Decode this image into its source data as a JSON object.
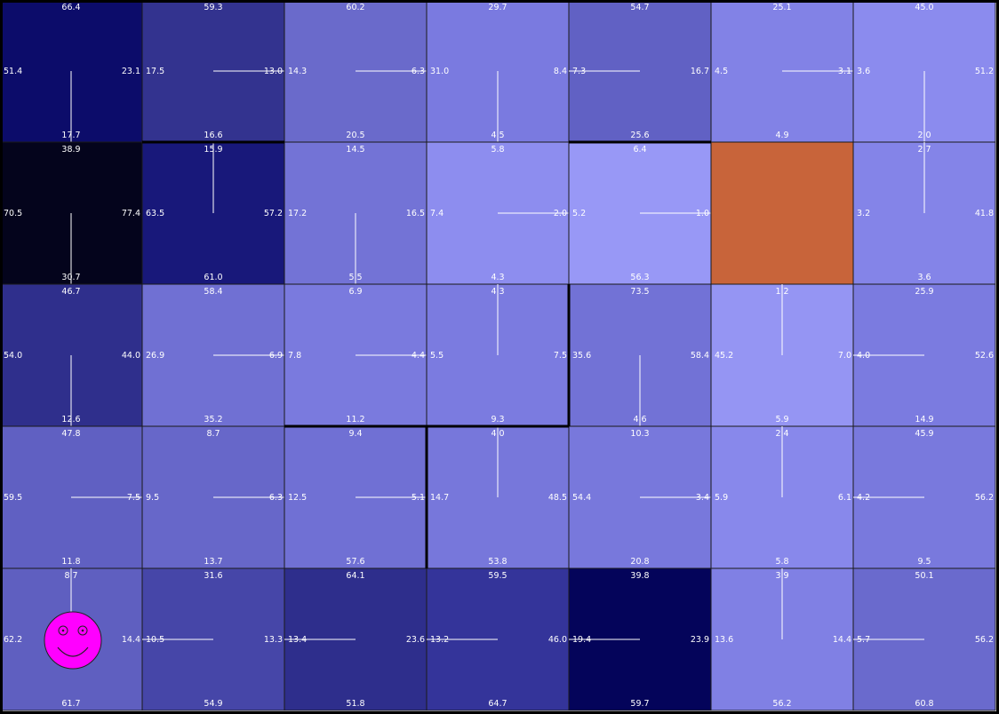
{
  "grid": {
    "cols": 7,
    "rows": 5,
    "goal_color": "#c8643a",
    "cells": [
      {
        "row": 0,
        "col": 0,
        "color": "#0c0c6a",
        "q": {
          "up": "66.4",
          "left": "51.4",
          "right": "23.1",
          "down": "17.7"
        },
        "best": "down"
      },
      {
        "row": 0,
        "col": 1,
        "color": "#33338f",
        "q": {
          "up": "59.3",
          "left": "17.5",
          "right": "13.0",
          "down": "16.6"
        },
        "best": "right"
      },
      {
        "row": 0,
        "col": 2,
        "color": "#6a6acb",
        "q": {
          "up": "60.2",
          "left": "14.3",
          "right": "6.3",
          "down": "20.5"
        },
        "best": "right"
      },
      {
        "row": 0,
        "col": 3,
        "color": "#7a7ae0",
        "q": {
          "up": "29.7",
          "left": "31.0",
          "right": "8.4",
          "down": "4.5"
        },
        "best": "down"
      },
      {
        "row": 0,
        "col": 4,
        "color": "#6161c4",
        "q": {
          "up": "54.7",
          "left": "7.3",
          "right": "16.7",
          "down": "25.6"
        },
        "best": "left"
      },
      {
        "row": 0,
        "col": 5,
        "color": "#8282e6",
        "q": {
          "up": "25.1",
          "left": "4.5",
          "right": "3.1",
          "down": "4.9"
        },
        "best": "right"
      },
      {
        "row": 0,
        "col": 6,
        "color": "#8b8bee",
        "q": {
          "up": "45.0",
          "left": "3.6",
          "right": "51.2",
          "down": "2.0"
        },
        "best": "down"
      },
      {
        "row": 1,
        "col": 0,
        "color": "#04041c",
        "q": {
          "up": "38.9",
          "left": "70.5",
          "right": "77.4",
          "down": "30.7"
        },
        "best": "down"
      },
      {
        "row": 1,
        "col": 1,
        "color": "#18187a",
        "q": {
          "up": "15.9",
          "left": "63.5",
          "right": "57.2",
          "down": "61.0"
        },
        "best": "up"
      },
      {
        "row": 1,
        "col": 2,
        "color": "#7373d6",
        "q": {
          "up": "14.5",
          "left": "17.2",
          "right": "16.5",
          "down": "5.5"
        },
        "best": "down"
      },
      {
        "row": 1,
        "col": 3,
        "color": "#8d8def",
        "q": {
          "up": "5.8",
          "left": "7.4",
          "right": "2.0",
          "down": "4.3"
        },
        "best": "right"
      },
      {
        "row": 1,
        "col": 4,
        "color": "#9898f6",
        "q": {
          "up": "6.4",
          "left": "5.2",
          "right": "1.0",
          "down": "56.3"
        },
        "best": "right"
      },
      {
        "row": 1,
        "col": 5,
        "color": "#c8643a",
        "goal": true
      },
      {
        "row": 1,
        "col": 6,
        "color": "#8484e8",
        "q": {
          "up": "2.7",
          "left": "3.2",
          "right": "41.8",
          "down": "3.6"
        },
        "best": "up"
      },
      {
        "row": 2,
        "col": 0,
        "color": "#2f2f8c",
        "q": {
          "up": "46.7",
          "left": "54.0",
          "right": "44.0",
          "down": "12.6"
        },
        "best": "down"
      },
      {
        "row": 2,
        "col": 1,
        "color": "#7070d3",
        "q": {
          "up": "58.4",
          "left": "26.9",
          "right": "6.9",
          "down": "35.2"
        },
        "best": "right"
      },
      {
        "row": 2,
        "col": 2,
        "color": "#7a7ade",
        "q": {
          "up": "6.9",
          "left": "7.8",
          "right": "4.4",
          "down": "11.2"
        },
        "best": "right"
      },
      {
        "row": 2,
        "col": 3,
        "color": "#7b7be0",
        "q": {
          "up": "4.3",
          "left": "5.5",
          "right": "7.5",
          "down": "9.3"
        },
        "best": "up"
      },
      {
        "row": 2,
        "col": 4,
        "color": "#7272d6",
        "q": {
          "up": "73.5",
          "left": "35.6",
          "right": "58.4",
          "down": "4.6"
        },
        "best": "down"
      },
      {
        "row": 2,
        "col": 5,
        "color": "#9595f3",
        "q": {
          "up": "1.2",
          "left": "45.2",
          "right": "7.0",
          "down": "5.9"
        },
        "best": "up"
      },
      {
        "row": 2,
        "col": 6,
        "color": "#7b7be0",
        "q": {
          "up": "25.9",
          "left": "4.0",
          "right": "52.6",
          "down": "14.9"
        },
        "best": "left"
      },
      {
        "row": 3,
        "col": 0,
        "color": "#6060c2",
        "q": {
          "up": "47.8",
          "left": "59.5",
          "right": "7.5",
          "down": "11.8"
        },
        "best": "right"
      },
      {
        "row": 3,
        "col": 1,
        "color": "#6767c9",
        "q": {
          "up": "8.7",
          "left": "9.5",
          "right": "6.3",
          "down": "13.7"
        },
        "best": "right"
      },
      {
        "row": 3,
        "col": 2,
        "color": "#7070d4",
        "q": {
          "up": "9.4",
          "left": "12.5",
          "right": "5.1",
          "down": "57.6"
        },
        "best": "right"
      },
      {
        "row": 3,
        "col": 3,
        "color": "#7777db",
        "q": {
          "up": "4.0",
          "left": "14.7",
          "right": "48.5",
          "down": "53.8"
        },
        "best": "up"
      },
      {
        "row": 3,
        "col": 4,
        "color": "#7878dc",
        "q": {
          "up": "10.3",
          "left": "54.4",
          "right": "3.4",
          "down": "20.8"
        },
        "best": "right"
      },
      {
        "row": 3,
        "col": 5,
        "color": "#8888eb",
        "q": {
          "up": "2.4",
          "left": "5.9",
          "right": "6.1",
          "down": "5.8"
        },
        "best": "up"
      },
      {
        "row": 3,
        "col": 6,
        "color": "#7979dd",
        "q": {
          "up": "45.9",
          "left": "4.2",
          "right": "56.2",
          "down": "9.5"
        },
        "best": "left"
      },
      {
        "row": 4,
        "col": 0,
        "color": "#5f5fc0",
        "q": {
          "up": "8.7",
          "left": "62.2",
          "right": "14.4",
          "down": "61.7"
        },
        "best": "up"
      },
      {
        "row": 4,
        "col": 1,
        "color": "#4646a8",
        "q": {
          "up": "31.6",
          "left": "10.5",
          "right": "13.3",
          "down": "54.9"
        },
        "best": "left"
      },
      {
        "row": 4,
        "col": 2,
        "color": "#2e2e8c",
        "q": {
          "up": "64.1",
          "left": "13.4",
          "right": "23.6",
          "down": "51.8"
        },
        "best": "left"
      },
      {
        "row": 4,
        "col": 3,
        "color": "#34349a",
        "q": {
          "up": "59.5",
          "left": "13.2",
          "right": "46.0",
          "down": "64.7"
        },
        "best": "left"
      },
      {
        "row": 4,
        "col": 4,
        "color": "#04045a",
        "q": {
          "up": "39.8",
          "left": "19.4",
          "right": "23.9",
          "down": "59.7"
        },
        "best": "left"
      },
      {
        "row": 4,
        "col": 5,
        "color": "#8080e4",
        "q": {
          "up": "3.9",
          "left": "13.6",
          "right": "14.4",
          "down": "56.2"
        },
        "best": "up"
      },
      {
        "row": 4,
        "col": 6,
        "color": "#6a6acd",
        "q": {
          "up": "50.1",
          "left": "5.7",
          "right": "56.2",
          "down": "60.8"
        },
        "best": "left"
      }
    ],
    "walls": [
      {
        "type": "h",
        "row": 1,
        "col": 1
      },
      {
        "type": "h",
        "row": 1,
        "col": 4
      },
      {
        "type": "v",
        "row": 2,
        "col": 4
      },
      {
        "type": "h",
        "row": 3,
        "col": 2
      },
      {
        "type": "h",
        "row": 3,
        "col": 3
      },
      {
        "type": "v",
        "row": 3,
        "col": 3
      }
    ]
  },
  "agent": {
    "row": 4,
    "col": 0,
    "icon": "smiley-agent-icon",
    "color": "#ff00ff"
  }
}
